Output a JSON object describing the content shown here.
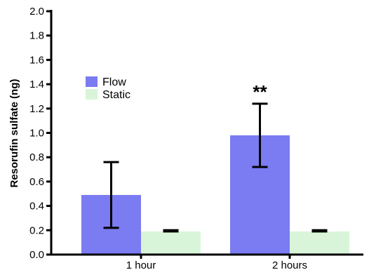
{
  "chart_data": {
    "type": "bar",
    "categories": [
      "1 hour",
      "2 hours"
    ],
    "ylabel": "Resorufin sulfate (ng)",
    "xlabel": "",
    "ylim": [
      0,
      2.0
    ],
    "yticks": [
      "0.0",
      "0.2",
      "0.4",
      "0.6",
      "0.8",
      "1.0",
      "1.2",
      "1.4",
      "1.6",
      "1.8",
      "2.0"
    ],
    "grid": false,
    "legend_position": "upper-left",
    "series": [
      {
        "name": "Flow",
        "color": "#7b7bf2",
        "values": [
          0.49,
          0.98
        ],
        "errors": [
          [
            0.22,
            0.76
          ],
          [
            0.72,
            1.24
          ]
        ]
      },
      {
        "name": "Static",
        "color": "#d9f5d9",
        "values": [
          0.19,
          0.19
        ],
        "errors": [
          [
            0.19,
            0.2
          ],
          [
            0.19,
            0.2
          ]
        ]
      }
    ],
    "annotations": [
      {
        "text": "**",
        "category": "2 hours",
        "series": "Flow"
      }
    ]
  }
}
